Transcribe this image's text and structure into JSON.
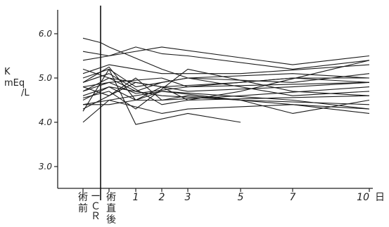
{
  "chart_data": {
    "type": "line",
    "ylabel_lines": [
      "K",
      "mEq",
      "/L"
    ],
    "y_ticks": [
      "6.0",
      "5.0",
      "4.0",
      "3.0"
    ],
    "ylim": [
      2.5,
      6.5
    ],
    "x_ticks": [
      {
        "x": -1,
        "label": "術\n前"
      },
      {
        "x": -0.5,
        "label": "ーＣＲ"
      },
      {
        "x": 0,
        "label": "術\n直\n後"
      },
      {
        "x": 1,
        "label": "1"
      },
      {
        "x": 2,
        "label": "2"
      },
      {
        "x": 3,
        "label": "3"
      },
      {
        "x": 5,
        "label": "5"
      },
      {
        "x": 7,
        "label": "7"
      },
      {
        "x": 10,
        "label": "10"
      }
    ],
    "x_unit": "日",
    "event_marker_x": -0.5,
    "series": [
      {
        "x": [
          -1,
          -0.5,
          0,
          2,
          3,
          7,
          10
        ],
        "values": [
          5.9,
          5.8,
          5.7,
          5.2,
          5.0,
          4.9,
          5.1
        ]
      },
      {
        "x": [
          -1,
          0,
          1,
          2,
          3,
          7,
          10
        ],
        "values": [
          5.6,
          5.5,
          5.7,
          5.55,
          5.5,
          5.2,
          5.4
        ]
      },
      {
        "x": [
          -1,
          0,
          2,
          7,
          10
        ],
        "values": [
          5.4,
          5.5,
          5.7,
          5.3,
          5.5
        ]
      },
      {
        "x": [
          -1,
          0,
          2,
          5,
          10
        ],
        "values": [
          5.1,
          5.3,
          5.1,
          5.1,
          5.3
        ]
      },
      {
        "x": [
          -1,
          0,
          1,
          3,
          7,
          10
        ],
        "values": [
          5.0,
          5.2,
          4.8,
          5.0,
          5.1,
          5.0
        ]
      },
      {
        "x": [
          -1,
          0,
          1,
          2,
          5,
          10
        ],
        "values": [
          4.9,
          5.25,
          4.5,
          4.5,
          4.6,
          4.8
        ]
      },
      {
        "x": [
          -1,
          0,
          1,
          3,
          7,
          10
        ],
        "values": [
          4.8,
          4.6,
          4.9,
          4.7,
          4.8,
          4.9
        ]
      },
      {
        "x": [
          -1,
          0,
          1,
          2,
          3,
          5,
          7,
          10
        ],
        "values": [
          4.7,
          5.0,
          4.7,
          4.9,
          5.0,
          4.8,
          4.6,
          4.7
        ]
      },
      {
        "x": [
          -1,
          0,
          1,
          3,
          10
        ],
        "values": [
          4.7,
          4.9,
          4.65,
          4.8,
          4.9
        ]
      },
      {
        "x": [
          -1,
          0,
          2,
          5,
          10
        ],
        "values": [
          4.6,
          4.8,
          4.6,
          4.5,
          4.4
        ]
      },
      {
        "x": [
          -1,
          0,
          1,
          2,
          7,
          10
        ],
        "values": [
          4.5,
          4.8,
          4.5,
          4.7,
          4.5,
          4.3
        ]
      },
      {
        "x": [
          -1,
          0,
          1,
          2,
          3,
          7,
          10
        ],
        "values": [
          4.3,
          4.6,
          5.0,
          4.5,
          4.6,
          4.4,
          4.2
        ]
      },
      {
        "x": [
          -1,
          0,
          1,
          3,
          5
        ],
        "values": [
          4.25,
          5.2,
          3.95,
          4.2,
          4.0
        ]
      },
      {
        "x": [
          -1,
          0,
          2,
          3,
          7,
          10
        ],
        "values": [
          4.0,
          4.5,
          4.2,
          4.3,
          4.4,
          4.3
        ]
      },
      {
        "x": [
          -1,
          0,
          2,
          5,
          7,
          10
        ],
        "values": [
          4.4,
          4.5,
          4.7,
          4.5,
          4.2,
          4.5
        ]
      },
      {
        "x": [
          -1,
          0,
          2,
          3,
          7,
          10
        ],
        "values": [
          4.8,
          4.9,
          5.0,
          4.8,
          5.0,
          4.9
        ]
      },
      {
        "x": [
          -1,
          0,
          2,
          5,
          7,
          10
        ],
        "values": [
          5.2,
          5.0,
          4.8,
          4.9,
          5.0,
          5.0
        ]
      },
      {
        "x": [
          -1,
          0,
          1,
          3,
          7,
          10
        ],
        "values": [
          4.55,
          4.7,
          4.3,
          5.2,
          4.7,
          4.6
        ]
      },
      {
        "x": [
          -1,
          0,
          1,
          2,
          3,
          10
        ],
        "values": [
          4.4,
          4.4,
          4.5,
          4.8,
          4.5,
          4.6
        ]
      },
      {
        "x": [
          -1,
          0,
          2,
          5,
          10
        ],
        "values": [
          4.9,
          5.1,
          4.4,
          4.7,
          5.4
        ]
      }
    ]
  }
}
